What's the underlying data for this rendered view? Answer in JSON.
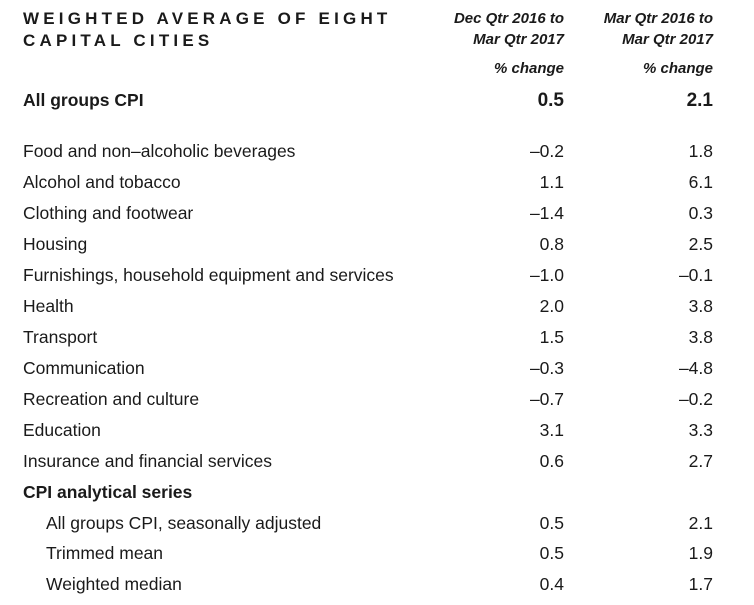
{
  "title": {
    "line1": "WEIGHTED AVERAGE OF EIGHT",
    "line2": "CAPITAL CITIES"
  },
  "columns": [
    {
      "line1": "Dec Qtr 2016 to",
      "line2": "Mar Qtr 2017",
      "unit": "% change"
    },
    {
      "line1": "Mar Qtr 2016 to",
      "line2": "Mar Qtr 2017",
      "unit": "% change"
    }
  ],
  "headline": {
    "label": "All groups CPI",
    "v1": "0.5",
    "v2": "2.1"
  },
  "groups": [
    {
      "label": "Food and non–alcoholic beverages",
      "v1": "–0.2",
      "v2": "1.8"
    },
    {
      "label": "Alcohol and tobacco",
      "v1": "1.1",
      "v2": "6.1"
    },
    {
      "label": "Clothing and footwear",
      "v1": "–1.4",
      "v2": "0.3"
    },
    {
      "label": "Housing",
      "v1": "0.8",
      "v2": "2.5"
    },
    {
      "label": "Furnishings, household equipment and services",
      "v1": "–1.0",
      "v2": "–0.1"
    },
    {
      "label": "Health",
      "v1": "2.0",
      "v2": "3.8"
    },
    {
      "label": "Transport",
      "v1": "1.5",
      "v2": "3.8"
    },
    {
      "label": "Communication",
      "v1": "–0.3",
      "v2": "–4.8"
    },
    {
      "label": "Recreation and culture",
      "v1": "–0.7",
      "v2": "–0.2"
    },
    {
      "label": "Education",
      "v1": "3.1",
      "v2": "3.3"
    },
    {
      "label": "Insurance and financial services",
      "v1": "0.6",
      "v2": "2.7"
    }
  ],
  "analytical": {
    "heading": "CPI analytical series",
    "rows": [
      {
        "label": "All groups CPI, seasonally adjusted",
        "v1": "0.5",
        "v2": "2.1"
      },
      {
        "label": "Trimmed mean",
        "v1": "0.5",
        "v2": "1.9"
      },
      {
        "label": "Weighted median",
        "v1": "0.4",
        "v2": "1.7"
      }
    ]
  }
}
